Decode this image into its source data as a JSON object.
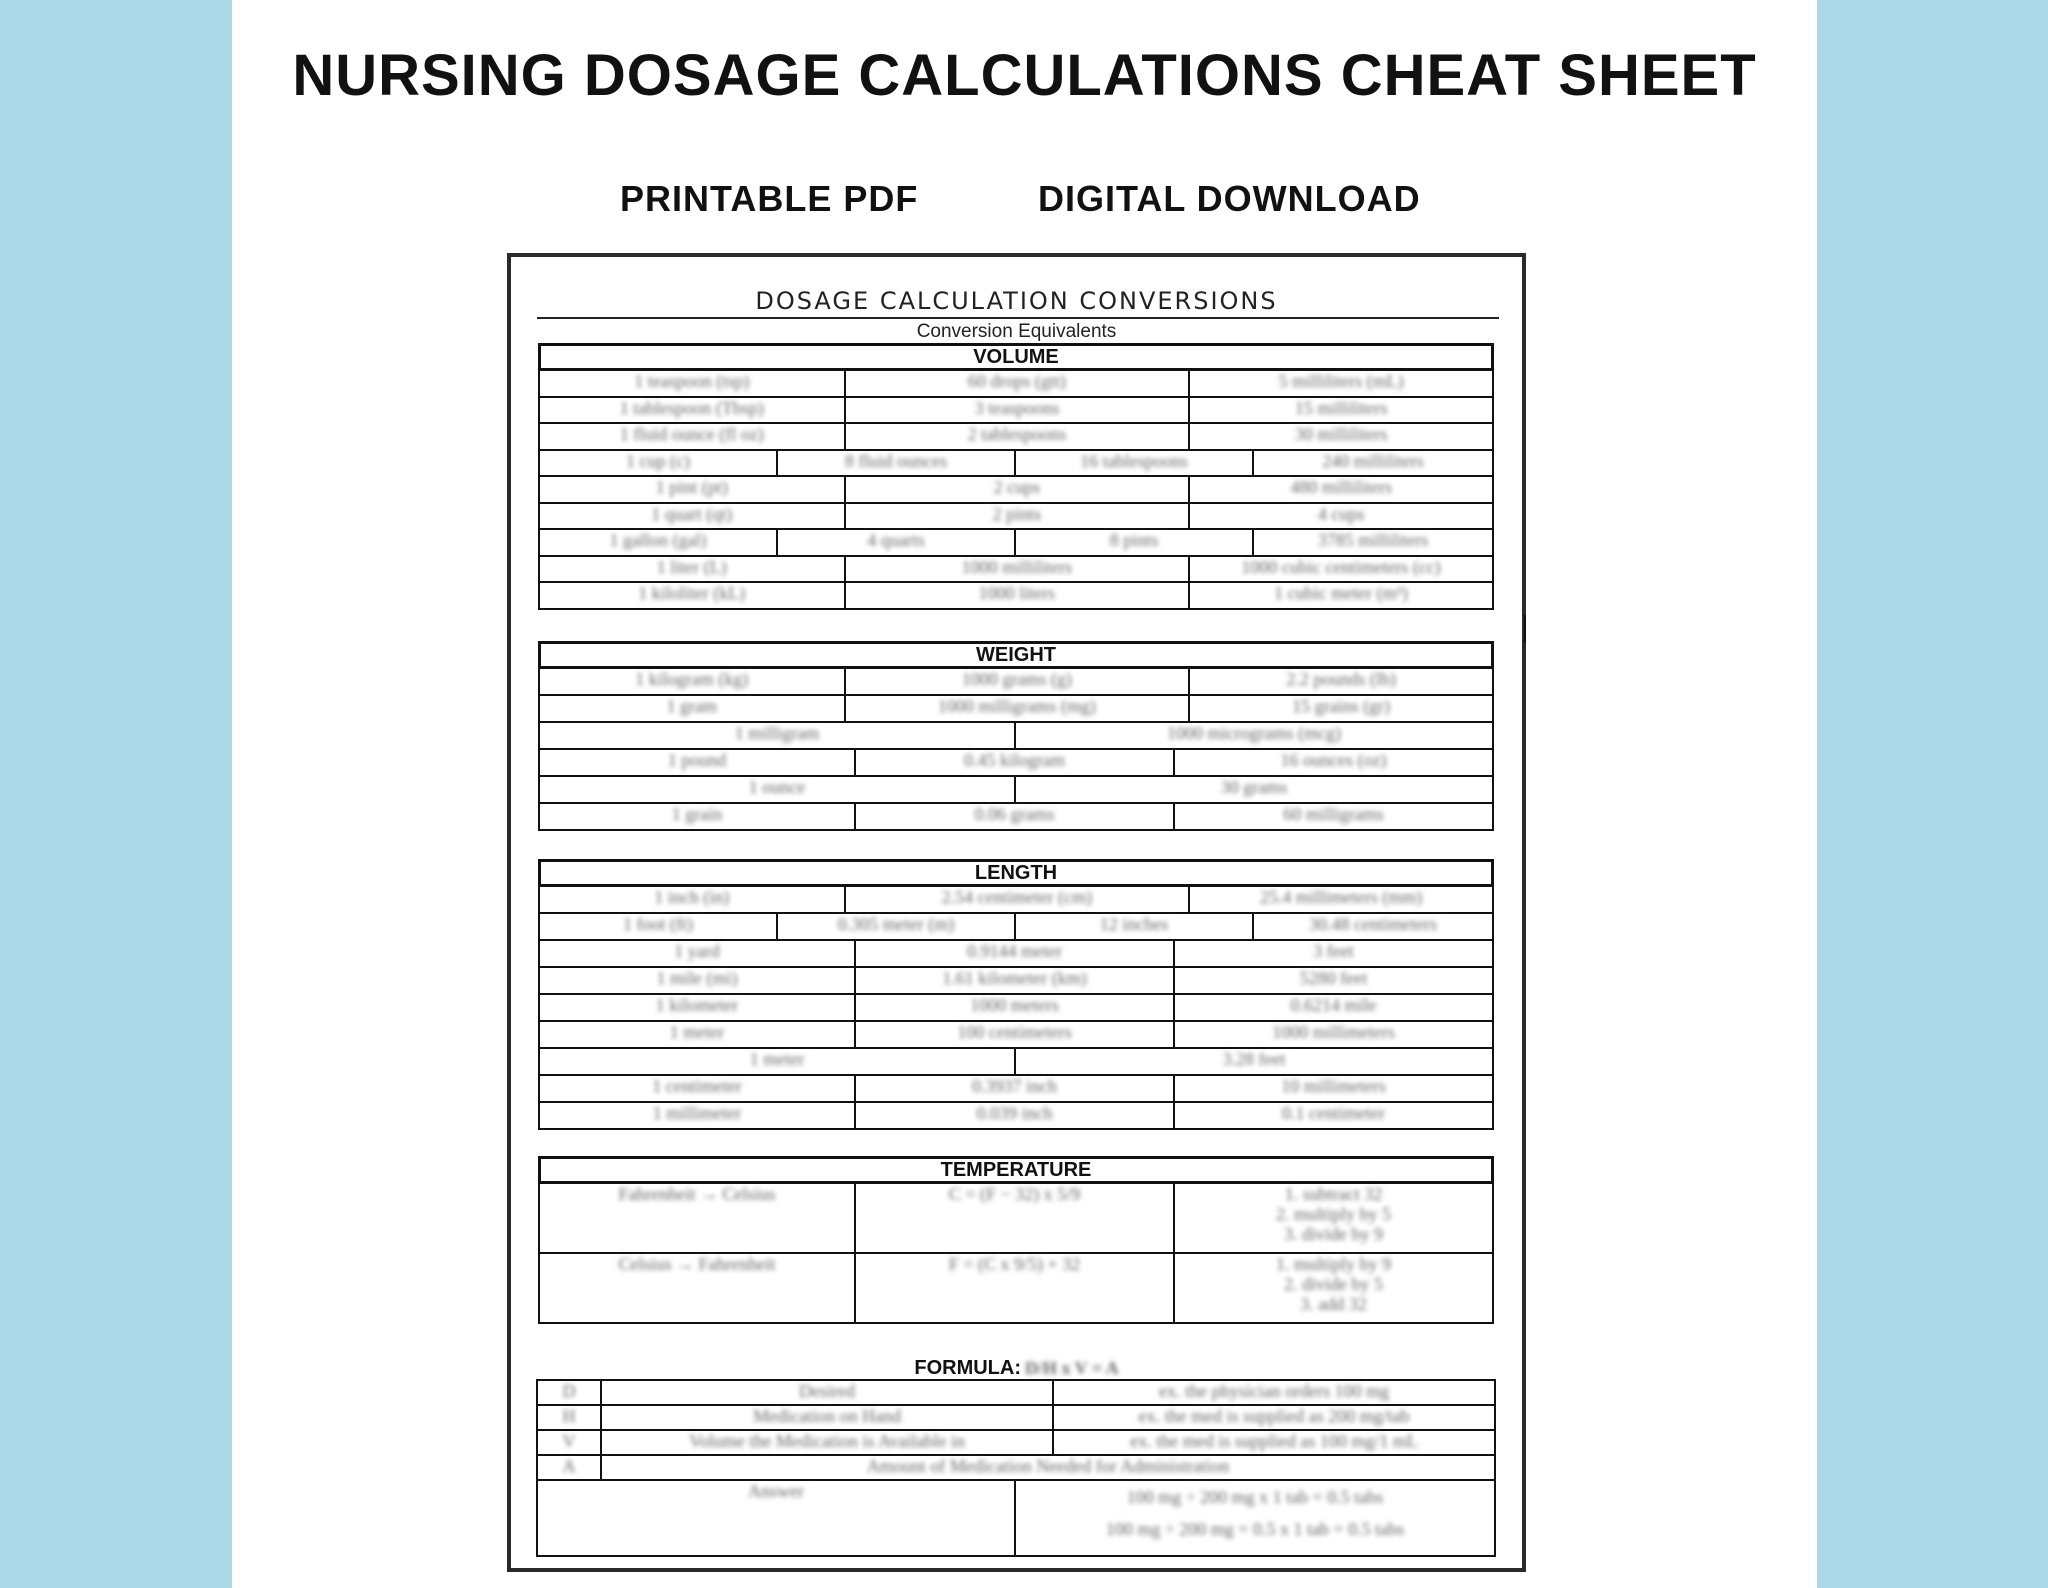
{
  "colors": {
    "side_panel": "#acd7e7",
    "border": "#111111",
    "blurred_text": "#666666"
  },
  "header": {
    "title": "NURSING DOSAGE CALCULATIONS CHEAT SHEET",
    "subtitle_left": "PRINTABLE PDF",
    "subtitle_right": "DIGITAL DOWNLOAD"
  },
  "document": {
    "title": "DOSAGE CALCULATION CONVERSIONS",
    "subtitle": "Conversion Equivalents",
    "sections": [
      {
        "heading": "VOLUME",
        "rows": [
          [
            "1 teaspoon (tsp)",
            "60 drops (gtt)",
            "5 milliliters (mL)"
          ],
          [
            "1 tablespoon (Tbsp)",
            "3 teaspoons",
            "15 milliliters"
          ],
          [
            "1 fluid ounce (fl oz)",
            "2 tablespoons",
            "30 milliliters"
          ],
          [
            "1 cup (c)",
            "8 fluid ounces",
            "16 tablespoons",
            "240 milliliters"
          ],
          [
            "1 pint (pt)",
            "2 cups",
            "480 milliliters"
          ],
          [
            "1 quart (qt)",
            "2 pints",
            "4 cups"
          ],
          [
            "1 gallon (gal)",
            "4 quarts",
            "8 pints",
            "3785 milliliters"
          ],
          [
            "1 liter (L)",
            "1000 milliliters",
            "1000 cubic centimeters (cc)"
          ],
          [
            "1 kiloliter (kL)",
            "1000 liters",
            "1 cubic meter (m³)"
          ]
        ]
      },
      {
        "heading": "WEIGHT",
        "rows": [
          [
            "1 kilogram (kg)",
            "1000 grams (g)",
            "2.2 pounds (lb)"
          ],
          [
            "1 gram",
            "1000 milligrams (mg)",
            "15 grains (gr)"
          ],
          [
            "1 milligram",
            "1000 micrograms (mcg)"
          ],
          [
            "1 pound",
            "0.45 kilogram",
            "16 ounces (oz)"
          ],
          [
            "1 ounce",
            "30 grams"
          ],
          [
            "1 grain",
            "0.06 grams",
            "60 milligrams"
          ]
        ]
      },
      {
        "heading": "LENGTH",
        "rows": [
          [
            "1 inch (in)",
            "2.54 centimeter (cm)",
            "25.4 millimeters (mm)"
          ],
          [
            "1 foot (ft)",
            "0.305 meter (m)",
            "12 inches",
            "30.48 centimeters"
          ],
          [
            "1 yard",
            "0.9144 meter",
            "3 feet"
          ],
          [
            "1 mile (mi)",
            "1.61 kilometer (km)",
            "5280 feet"
          ],
          [
            "1 kilometer",
            "1000 meters",
            "0.6214 mile"
          ],
          [
            "1 meter",
            "100 centimeters",
            "1000 millimeters"
          ],
          [
            "1 meter",
            "3.28 feet"
          ],
          [
            "1 centimeter",
            "0.3937 inch",
            "10 millimeters"
          ],
          [
            "1 millimeter",
            "0.039 inch",
            "0.1 centimeter"
          ]
        ]
      },
      {
        "heading": "TEMPERATURE",
        "rows": [
          [
            "Fahrenheit → Celsius",
            "C = (F − 32) x 5/9",
            "1. subtract 32\n2. multiply by 5\n3. divide by 9"
          ],
          [
            "Celsius → Fahrenheit",
            "F = (C x 9/5) + 32",
            "1. multiply by 9\n2. divide by 5\n3. add 32"
          ]
        ]
      }
    ],
    "formula": {
      "label": "FORMULA:",
      "equation": "D/H x V = A",
      "rows": [
        [
          "D",
          "Desired",
          "ex. the physician orders 100 mg"
        ],
        [
          "H",
          "Medication on Hand",
          "ex. the med is supplied as 200 mg/tab"
        ],
        [
          "V",
          "Volume the Medication is Available in",
          "ex. the med is supplied as 100 mg/1 mL"
        ],
        [
          "A",
          "Amount of Medication Needed for Administration"
        ]
      ],
      "answer": {
        "label": "Answer",
        "lines": [
          "100 mg ÷ 200 mg x 1 tab = 0.5 tabs",
          "100 mg ÷ 200 mg = 0.5 x 1 tab = 0.5 tabs"
        ]
      }
    }
  }
}
